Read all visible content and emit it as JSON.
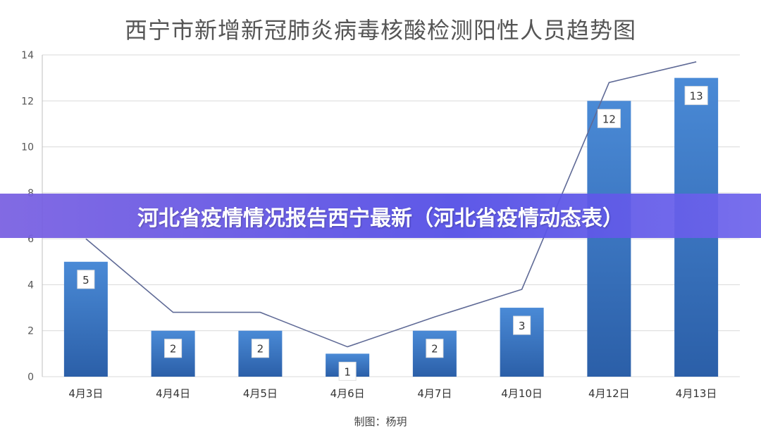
{
  "banner": {
    "text": "河北省疫情情况报告西宁最新（河北省疫情动态表）"
  },
  "credit": "制图：杨玥",
  "colors": {
    "bar_top": "#4a8ad6",
    "bar_bottom": "#2b5fa8",
    "line": "#5f6a96",
    "grid": "#d9d9d9"
  },
  "chart_data": {
    "type": "bar",
    "title": "西宁市新增新冠肺炎病毒核酸检测阳性人员趋势图",
    "categories": [
      "4月3日",
      "4月4日",
      "4月5日",
      "4月6日",
      "4月7日",
      "4月10日",
      "4月12日",
      "4月13日"
    ],
    "values": [
      5,
      2,
      2,
      1,
      2,
      3,
      12,
      13
    ],
    "trend_line": [
      6.0,
      2.8,
      2.8,
      1.3,
      2.6,
      3.8,
      12.8,
      13.7
    ],
    "ylim": [
      0,
      14
    ],
    "yticks": [
      0,
      2,
      4,
      6,
      8,
      10,
      12,
      14
    ],
    "grid": true,
    "legend": "none",
    "xlabel": "",
    "ylabel": ""
  }
}
